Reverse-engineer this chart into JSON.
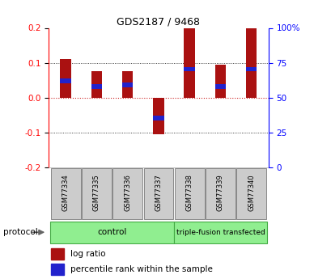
{
  "title": "GDS2187 / 9468",
  "samples": [
    "GSM77334",
    "GSM77335",
    "GSM77336",
    "GSM77337",
    "GSM77338",
    "GSM77339",
    "GSM77340"
  ],
  "log_ratio": [
    0.11,
    0.075,
    0.075,
    -0.105,
    0.2,
    0.095,
    0.2
  ],
  "percentile_rank_pos": [
    0.048,
    0.032,
    0.036,
    -0.058,
    0.082,
    0.032,
    0.082
  ],
  "ylim": [
    -0.2,
    0.2
  ],
  "yticks_left": [
    -0.2,
    -0.1,
    0.0,
    0.1,
    0.2
  ],
  "right_tick_positions": [
    -0.2,
    -0.1,
    0.0,
    0.1,
    0.2
  ],
  "right_tick_labels": [
    "0",
    "25",
    "50",
    "75",
    "100%"
  ],
  "bar_color": "#aa1111",
  "marker_color": "#2222cc",
  "bg_color": "#ffffff",
  "grid_color": "#111111",
  "dashed_color": "#cc2222",
  "legend_log_ratio": "log ratio",
  "legend_percentile": "percentile rank within the sample",
  "protocol_label": "protocol",
  "ctrl_label": "control",
  "tf_label": "triple-fusion transfected",
  "group_color": "#90EE90",
  "group_edge_color": "#44aa44",
  "sample_box_color": "#cccccc",
  "sample_box_edge": "#888888"
}
